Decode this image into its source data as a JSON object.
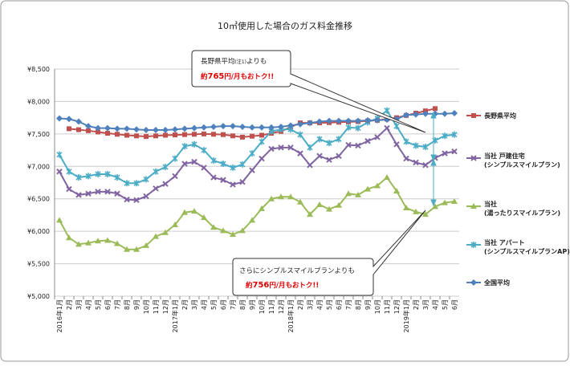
{
  "chart_data": {
    "type": "line",
    "title": "10㎥使用した場合のガス料金推移",
    "categories": [
      "2016年1月",
      "2月",
      "3月",
      "4月",
      "5月",
      "6月",
      "7月",
      "8月",
      "9月",
      "10月",
      "11月",
      "12月",
      "2017年1月",
      "2月",
      "3月",
      "4月",
      "5月",
      "6月",
      "7月",
      "8月",
      "9月",
      "10月",
      "11月",
      "12月",
      "2018年1月",
      "2月",
      "3月",
      "4月",
      "5月",
      "6月",
      "7月",
      "8月",
      "9月",
      "10月",
      "11月",
      "12月",
      "2019年1月",
      "2月",
      "3月",
      "4月",
      "5月",
      "6月"
    ],
    "ylim": [
      5000,
      8500
    ],
    "yticks": [
      {
        "value": 5000,
        "label": "¥5,000"
      },
      {
        "value": 5500,
        "label": "¥5,500"
      },
      {
        "value": 6000,
        "label": "¥6,000"
      },
      {
        "value": 6500,
        "label": "¥6,500"
      },
      {
        "value": 7000,
        "label": "¥7,000"
      },
      {
        "value": 7500,
        "label": "¥7,500"
      },
      {
        "value": 8000,
        "label": "¥8,000"
      },
      {
        "value": 8500,
        "label": "¥8,500"
      }
    ],
    "grid": true,
    "legend": "right",
    "series": [
      {
        "name": "長野県平均",
        "color": "#c0504d",
        "marker": "square",
        "values": [
          null,
          7580,
          7565,
          7550,
          7530,
          7510,
          7495,
          7480,
          7470,
          7460,
          7470,
          7480,
          7485,
          7490,
          7495,
          7500,
          7495,
          7490,
          7470,
          7450,
          7465,
          7480,
          7510,
          7540,
          7605,
          7670,
          7670,
          7670,
          7675,
          7680,
          7685,
          7690,
          7700,
          7710,
          7730,
          7750,
          7785,
          7820,
          7855,
          7890,
          null,
          null
        ]
      },
      {
        "name": "当社 戸建住宅\n(シンプルスマイルプラン)",
        "color": "#8064a2",
        "marker": "x",
        "values": [
          6920,
          6650,
          6560,
          6580,
          6610,
          6610,
          6580,
          6490,
          6480,
          6540,
          6660,
          6730,
          6850,
          7040,
          7070,
          6980,
          6830,
          6790,
          6720,
          6760,
          6940,
          7120,
          7270,
          7290,
          7290,
          7200,
          7020,
          7160,
          7100,
          7160,
          7330,
          7320,
          7390,
          7450,
          7590,
          7340,
          7120,
          7060,
          7020,
          7130,
          7200,
          7230
        ]
      },
      {
        "name": "当社\n(湯ったりスマイルプラン)",
        "color": "#9bbb59",
        "marker": "triangle",
        "values": [
          6170,
          5900,
          5800,
          5820,
          5850,
          5860,
          5810,
          5720,
          5720,
          5780,
          5920,
          5980,
          6100,
          6290,
          6310,
          6210,
          6060,
          6010,
          5950,
          6010,
          6170,
          6350,
          6500,
          6530,
          6530,
          6450,
          6260,
          6410,
          6340,
          6400,
          6580,
          6560,
          6650,
          6700,
          6830,
          6620,
          6360,
          6300,
          6260,
          6380,
          6440,
          6460
        ]
      },
      {
        "name": "当社 アパート\n(シンプルスマイルプランAP)",
        "color": "#4bacc6",
        "marker": "star",
        "values": [
          7180,
          6920,
          6830,
          6850,
          6880,
          6880,
          6830,
          6740,
          6740,
          6800,
          6920,
          6990,
          7120,
          7310,
          7340,
          7250,
          7090,
          7040,
          6980,
          7030,
          7200,
          7380,
          7540,
          7570,
          7570,
          7490,
          7290,
          7420,
          7360,
          7420,
          7600,
          7590,
          7680,
          7740,
          7860,
          7620,
          7380,
          7320,
          7300,
          7400,
          7470,
          7490
        ]
      },
      {
        "name": "全国平均",
        "color": "#4f81bd",
        "marker": "diamond",
        "values": [
          7740,
          7730,
          7690,
          7620,
          7590,
          7590,
          7580,
          7580,
          7570,
          7560,
          7560,
          7560,
          7570,
          7580,
          7590,
          7600,
          7610,
          7620,
          7620,
          7610,
          7600,
          7600,
          7600,
          7610,
          7630,
          7650,
          7670,
          7690,
          7700,
          7700,
          7700,
          7700,
          7710,
          7710,
          7720,
          7730,
          7790,
          7800,
          7810,
          7810,
          7810,
          7820
        ]
      }
    ],
    "annotations": [
      {
        "lines": [
          [
            "長野県平均",
            "(注1)",
            "よりも"
          ],
          [
            "約",
            "765",
            "円/月もおトク!!"
          ]
        ]
      },
      {
        "lines": [
          [
            "さらにシンプルスマイルプランよりも"
          ],
          [
            "約",
            "756",
            "円/月もおトク!!"
          ]
        ]
      }
    ]
  }
}
